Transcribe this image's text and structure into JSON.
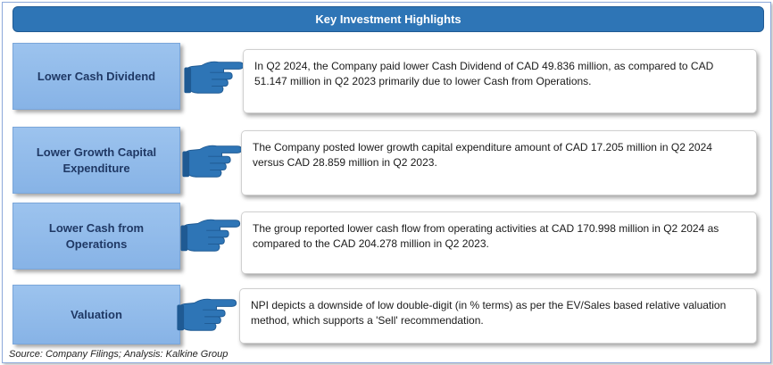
{
  "header": {
    "title": "Key Investment Highlights"
  },
  "rows": [
    {
      "label": "Lower Cash Dividend",
      "text": "In Q2 2024, the  Company paid lower Cash Dividend of CAD  49.836 million, as compared to CAD 51.147 million in   Q2 2023 primarily due to  lower Cash from Operations."
    },
    {
      "label": "Lower Growth Capital Expenditure",
      "text": "The Company posted lower growth  capital expenditure amount of CAD 17.205 million in Q2 2024 versus CAD 28.859 million in Q2 2023."
    },
    {
      "label": "Lower Cash from Operations",
      "text": "The group reported lower cash flow from operating activities at CAD 170.998 million in Q2 2024 as compared to the CAD 204.278 million in Q2 2023."
    },
    {
      "label": "Valuation",
      "text": "NPI  depicts a downside of low double-digit (in % terms) as per the EV/Sales based relative valuation method, which supports a 'Sell' recommendation."
    }
  ],
  "footer": {
    "source": "Source: Company Filings; Analysis: Kalkine Group"
  },
  "colors": {
    "header": "#2e75b6",
    "label_box": "#9cc3ee",
    "hand": "#2e75b6"
  },
  "icons": [
    "pointing-hand-icon"
  ]
}
